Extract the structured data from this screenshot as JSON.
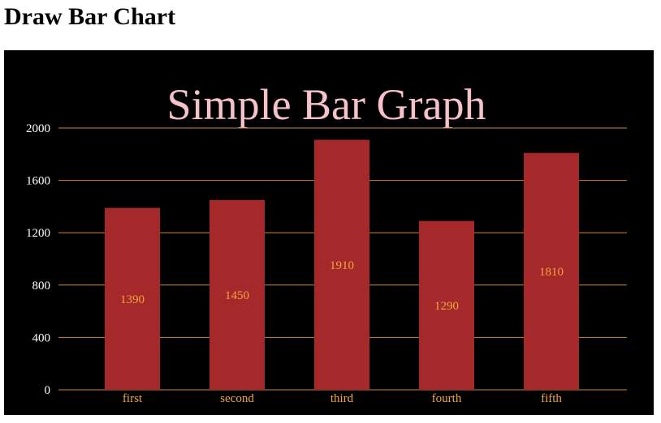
{
  "page": {
    "heading": "Draw Bar Chart"
  },
  "colors": {
    "background": "#000000",
    "bar": "#a5292a",
    "gridline": "#c9893b",
    "title": "#f5c2c9",
    "y_tick_text": "#ffffff",
    "x_tick_text": "#f2a440",
    "value_label": "#f2a440"
  },
  "chart_data": {
    "type": "bar",
    "title": "Simple Bar Graph",
    "xlabel": "",
    "ylabel": "",
    "categories": [
      "first",
      "second",
      "third",
      "fourth",
      "fifth"
    ],
    "values": [
      1390,
      1450,
      1910,
      1290,
      1810
    ],
    "value_labels": [
      "1390",
      "1450",
      "1910",
      "1290",
      "1810"
    ],
    "ylim": [
      0,
      2000
    ],
    "yticks": [
      0,
      400,
      800,
      1200,
      1600,
      2000
    ],
    "ytick_labels": [
      "0",
      "400",
      "800",
      "1200",
      "1600",
      "2000"
    ],
    "grid": true,
    "legend": false
  }
}
